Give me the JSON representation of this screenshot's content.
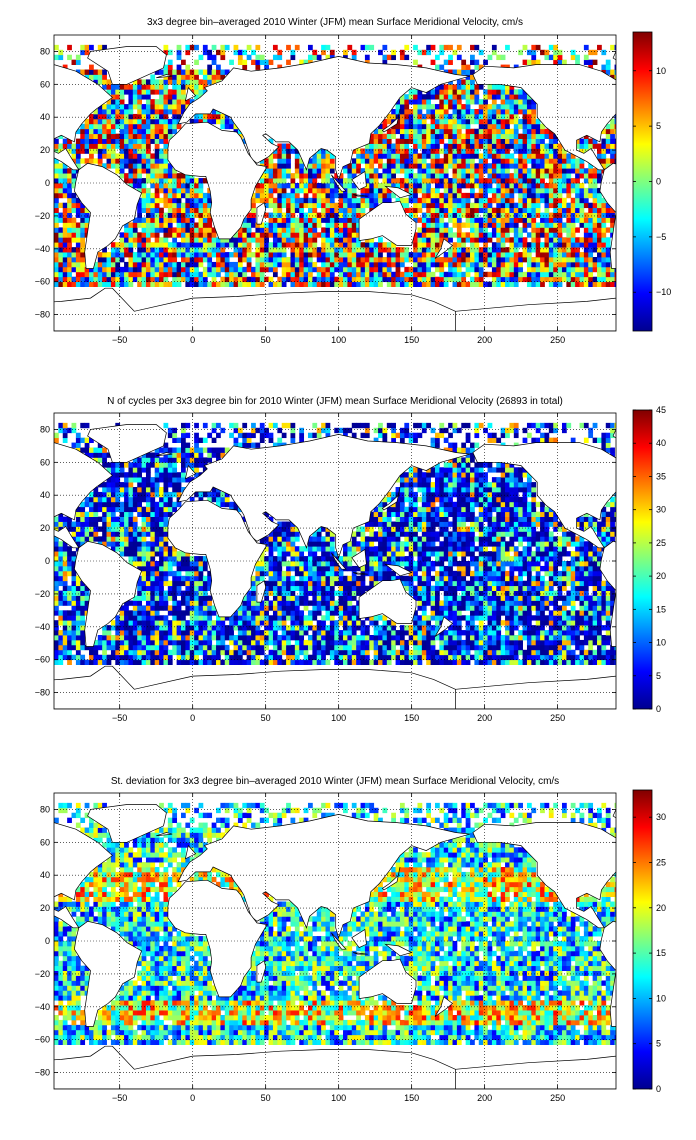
{
  "chart_data": [
    {
      "type": "heatmap",
      "title": "3x3 degree bin–averaged 2010 Winter (JFM) mean Surface Meridional Velocity, cm/s",
      "xlabel": "",
      "ylabel": "",
      "xlim": [
        -95,
        290
      ],
      "ylim": [
        -90,
        90
      ],
      "x_ticks": [
        -50,
        0,
        50,
        100,
        150,
        200,
        250
      ],
      "y_ticks": [
        -80,
        -60,
        -40,
        -20,
        0,
        20,
        40,
        60,
        80
      ],
      "colorbar": {
        "min": -13.5,
        "max": 13.5,
        "ticks": [
          -10,
          -5,
          0,
          5,
          10
        ],
        "colormap": "jet"
      },
      "field": "mean_meridional_velocity",
      "grid": true
    },
    {
      "type": "heatmap",
      "title": "N of cycles per 3x3 degree bin for 2010 Winter (JFM) mean Surface Meridional Velocity (26893 in total)",
      "xlabel": "",
      "ylabel": "",
      "xlim": [
        -95,
        290
      ],
      "ylim": [
        -90,
        90
      ],
      "x_ticks": [
        -50,
        0,
        50,
        100,
        150,
        200,
        250
      ],
      "y_ticks": [
        -80,
        -60,
        -40,
        -20,
        0,
        20,
        40,
        60,
        80
      ],
      "colorbar": {
        "min": 0,
        "max": 45,
        "ticks": [
          0,
          5,
          10,
          15,
          20,
          25,
          30,
          35,
          40,
          45
        ],
        "colormap": "jet"
      },
      "field": "cycle_count",
      "grid": true
    },
    {
      "type": "heatmap",
      "title": "St. deviation for 3x3 degree bin–averaged 2010 Winter (JFM) mean Surface Meridional Velocity, cm/s",
      "xlabel": "",
      "ylabel": "",
      "xlim": [
        -95,
        290
      ],
      "ylim": [
        -90,
        90
      ],
      "x_ticks": [
        -50,
        0,
        50,
        100,
        150,
        200,
        250
      ],
      "y_ticks": [
        -80,
        -60,
        -40,
        -20,
        0,
        20,
        40,
        60,
        80
      ],
      "colorbar": {
        "min": 0,
        "max": 33,
        "ticks": [
          0,
          5,
          10,
          15,
          20,
          25,
          30
        ],
        "colormap": "jet"
      },
      "field": "std_deviation",
      "grid": true
    }
  ]
}
